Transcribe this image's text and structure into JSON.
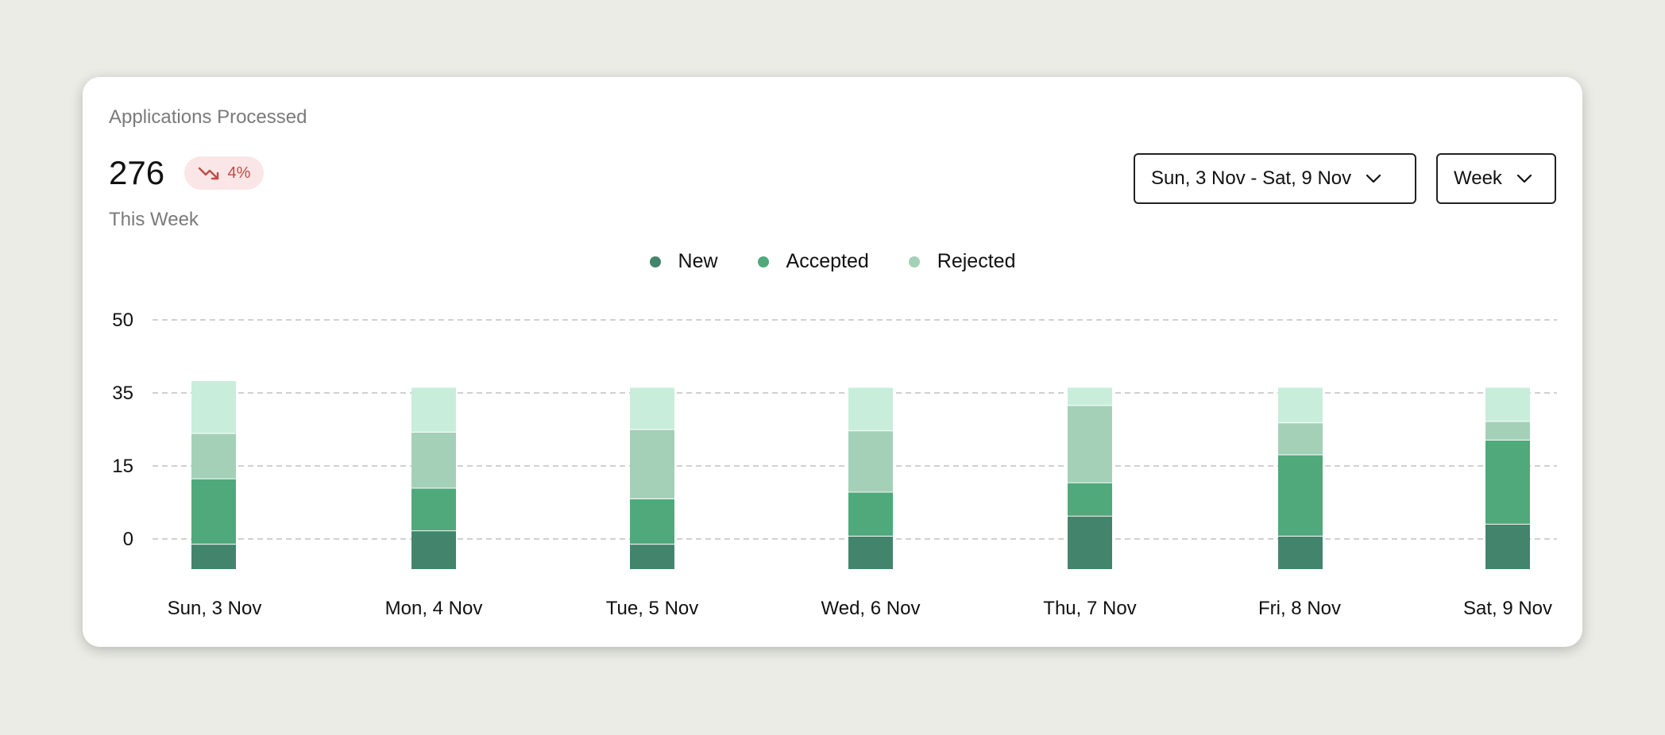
{
  "card": {
    "title": "Applications Processed",
    "value": "276",
    "change": "4%",
    "change_direction": "down",
    "period": "This Week"
  },
  "controls": {
    "date_range": "Sun, 3 Nov - Sat, 9 Nov",
    "granularity": "Week"
  },
  "colors": {
    "new": "#43846d",
    "accepted": "#4fa97b",
    "rejected": "#a4d0b8",
    "remainder": "#c8eddb",
    "badge_bg": "#fae6e6",
    "badge_text": "#c04a4a"
  },
  "chart_data": {
    "type": "bar",
    "stacked": true,
    "categories": [
      "Sun, 3 Nov",
      "Mon, 4 Nov",
      "Tue, 5 Nov",
      "Wed, 6 Nov",
      "Thu, 7 Nov",
      "Fri, 8 Nov",
      "Sat, 9 Nov"
    ],
    "y_ticks": [
      "50",
      "35",
      "15",
      "0"
    ],
    "series": [
      {
        "name": "New",
        "color": "#43846d",
        "values": [
          9.5,
          14.5,
          9.5,
          12.5,
          20,
          12.5,
          17
        ]
      },
      {
        "name": "Accepted",
        "color": "#4fa97b",
        "values": [
          24.5,
          16,
          17,
          16.5,
          12.5,
          30.5,
          31.5
        ]
      },
      {
        "name": "Rejected",
        "color": "#a4d0b8",
        "values": [
          17,
          21,
          26,
          23,
          29,
          12,
          7
        ]
      },
      {
        "name": "",
        "color": "#c8eddb",
        "values": [
          19.5,
          16.5,
          15.5,
          16,
          6.5,
          13,
          12.5
        ]
      }
    ],
    "grid": true,
    "legend": "top-center"
  }
}
